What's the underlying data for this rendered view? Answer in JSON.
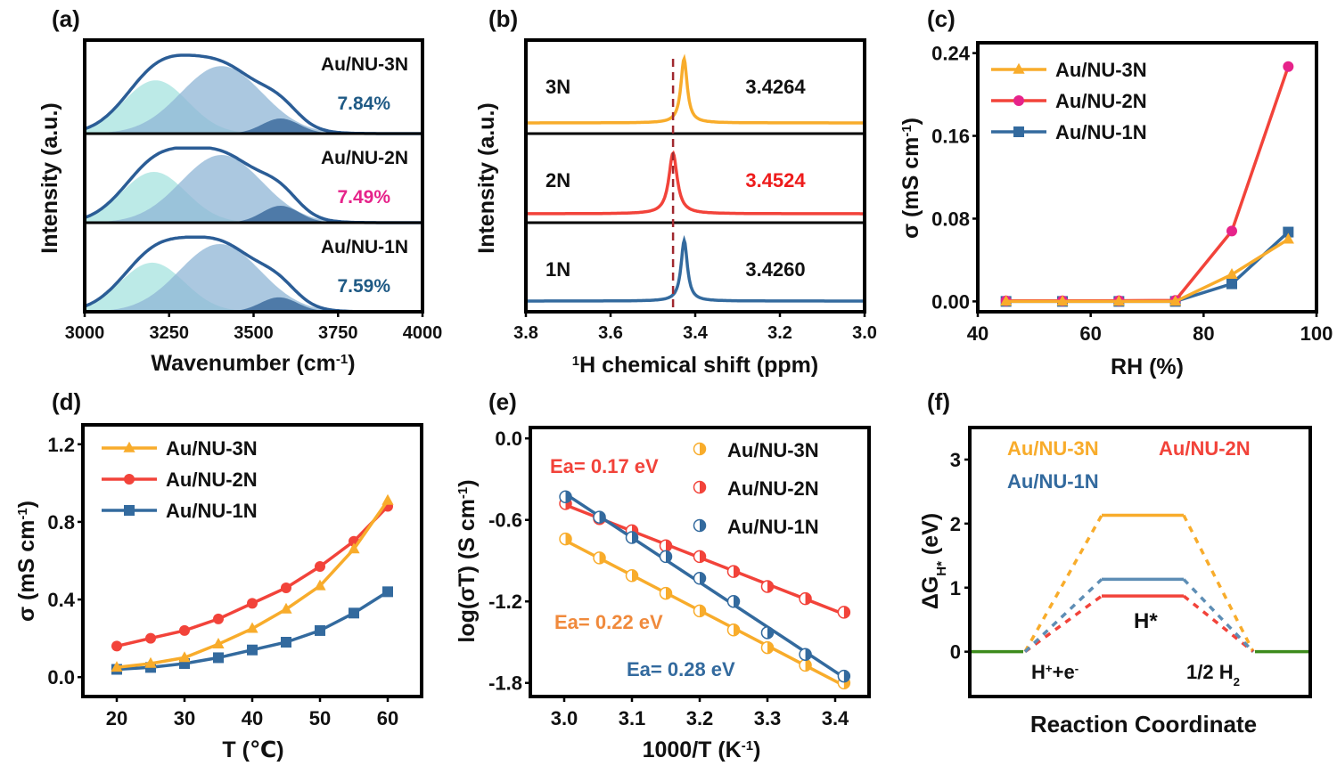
{
  "chart_data": [
    {
      "id": "a",
      "panel_label": "(a)",
      "type": "area",
      "xlabel": "Wavenumber (cm",
      "xlabel_sup": "-1",
      "xlabel_close": ")",
      "ylabel": "Intensity (a.u.)",
      "xlim": [
        3000,
        4000
      ],
      "xticks": [
        "3000",
        "3250",
        "3500",
        "3750",
        "4000"
      ],
      "xtick_values": [
        3000,
        3250,
        3500,
        3750,
        4000
      ],
      "stacked_panels": [
        {
          "name": "Au/NU-3N",
          "percent": "7.84%",
          "percent_color": "#1f5a85",
          "components": [
            {
              "center": 3210,
              "width": 95,
              "height": 0.6,
              "color": "#a6e3df"
            },
            {
              "center": 3405,
              "width": 120,
              "height": 0.76,
              "color": "#8fb6d6"
            },
            {
              "center": 3580,
              "width": 55,
              "height": 0.17,
              "color": "#2f6095"
            }
          ]
        },
        {
          "name": "Au/NU-2N",
          "percent": "7.49%",
          "percent_color": "#e6238a",
          "components": [
            {
              "center": 3205,
              "width": 95,
              "height": 0.6,
              "color": "#a6e3df"
            },
            {
              "center": 3405,
              "width": 120,
              "height": 0.8,
              "color": "#8fb6d6"
            },
            {
              "center": 3580,
              "width": 55,
              "height": 0.2,
              "color": "#2f6095"
            }
          ]
        },
        {
          "name": "Au/NU-1N",
          "percent": "7.59%",
          "percent_color": "#1f5a85",
          "components": [
            {
              "center": 3200,
              "width": 95,
              "height": 0.58,
              "color": "#a6e3df"
            },
            {
              "center": 3400,
              "width": 120,
              "height": 0.8,
              "color": "#8fb6d6"
            },
            {
              "center": 3575,
              "width": 55,
              "height": 0.17,
              "color": "#2f6095"
            }
          ]
        }
      ],
      "envelope_color": "#2b5d96"
    },
    {
      "id": "b",
      "panel_label": "(b)",
      "type": "line",
      "xlabel_sup": "1",
      "xlabel": "H chemical shift (ppm)",
      "ylabel": "Intensity (a.u.)",
      "xlim": [
        3.8,
        3.0
      ],
      "xticks": [
        "3.8",
        "3.6",
        "3.4",
        "3.2",
        "3.0"
      ],
      "xtick_values": [
        3.8,
        3.6,
        3.4,
        3.2,
        3.0
      ],
      "reference_line": 3.4524,
      "reference_color": "#a0282e",
      "series": [
        {
          "name": "3N",
          "peak": 3.4264,
          "value_label": "3.4264",
          "color": "#f8ac2b",
          "label_color": "#111111"
        },
        {
          "name": "2N",
          "peak": 3.4524,
          "value_label": "3.4524",
          "color": "#f2433a",
          "label_color": "#ee1c1c"
        },
        {
          "name": "1N",
          "peak": 3.426,
          "value_label": "3.4260",
          "color": "#336a9e",
          "label_color": "#111111"
        }
      ]
    },
    {
      "id": "c",
      "panel_label": "(c)",
      "type": "line",
      "xlabel": "RH (%)",
      "ylabel": "σ (mS cm",
      "ylabel_sup": "-1",
      "ylabel_close": ")",
      "xlim": [
        40,
        100
      ],
      "ylim": [
        -0.01,
        0.25
      ],
      "xticks": [
        "40",
        "60",
        "80",
        "100"
      ],
      "xtick_values": [
        40,
        60,
        80,
        100
      ],
      "yticks": [
        "0.00",
        "0.08",
        "0.16",
        "0.24"
      ],
      "ytick_values": [
        0.0,
        0.08,
        0.16,
        0.24
      ],
      "legend_position": "top-left",
      "x": [
        45,
        55,
        65,
        75,
        85,
        95
      ],
      "series": [
        {
          "name": "Au/NU-3N",
          "marker": "triangle",
          "color": "#f8ac2b",
          "marker_color": "#f8ac2b",
          "values": [
            0.0,
            0.0,
            0.0,
            0.0,
            0.026,
            0.06
          ]
        },
        {
          "name": "Au/NU-2N",
          "marker": "circle",
          "color": "#f2433a",
          "marker_color": "#e6238a",
          "values": [
            0.0005,
            0.0005,
            0.0007,
            0.001,
            0.068,
            0.227
          ]
        },
        {
          "name": "Au/NU-1N",
          "marker": "square",
          "color": "#336a9e",
          "marker_color": "#336a9e",
          "values": [
            0.0,
            0.0,
            0.0,
            0.0,
            0.017,
            0.067
          ]
        }
      ]
    },
    {
      "id": "d",
      "panel_label": "(d)",
      "type": "line",
      "xlabel": "T (℃)",
      "ylabel": "σ (mS cm",
      "ylabel_sup": "-1",
      "ylabel_close": ")",
      "xlim": [
        15,
        65
      ],
      "ylim": [
        -0.1,
        1.3
      ],
      "xticks": [
        "20",
        "30",
        "40",
        "50",
        "60"
      ],
      "xtick_values": [
        20,
        30,
        40,
        50,
        60
      ],
      "yticks": [
        "0.0",
        "0.4",
        "0.8",
        "1.2"
      ],
      "ytick_values": [
        0.0,
        0.4,
        0.8,
        1.2
      ],
      "legend_position": "top-left",
      "x": [
        20,
        25,
        30,
        35,
        40,
        45,
        50,
        55,
        60
      ],
      "series": [
        {
          "name": "Au/NU-3N",
          "marker": "triangle",
          "color": "#f8ac2b",
          "values": [
            0.05,
            0.07,
            0.1,
            0.17,
            0.25,
            0.35,
            0.47,
            0.66,
            0.91
          ]
        },
        {
          "name": "Au/NU-2N",
          "marker": "circle",
          "color": "#f2433a",
          "values": [
            0.16,
            0.2,
            0.24,
            0.3,
            0.38,
            0.46,
            0.57,
            0.7,
            0.88
          ]
        },
        {
          "name": "Au/NU-1N",
          "marker": "square",
          "color": "#336a9e",
          "values": [
            0.04,
            0.05,
            0.07,
            0.1,
            0.14,
            0.18,
            0.24,
            0.33,
            0.44
          ]
        }
      ]
    },
    {
      "id": "e",
      "panel_label": "(e)",
      "type": "scatter",
      "xlabel": "1000/T (K",
      "xlabel_sup": "-1",
      "xlabel_close": ")",
      "ylabel": "log(σT) (S cm",
      "ylabel_sup": "-1",
      "ylabel_close": ")",
      "xlim": [
        2.95,
        3.45
      ],
      "ylim": [
        -1.9,
        0.08
      ],
      "xticks": [
        "3.0",
        "3.1",
        "3.2",
        "3.3",
        "3.4"
      ],
      "xtick_values": [
        3.0,
        3.1,
        3.2,
        3.3,
        3.4
      ],
      "yticks": [
        "0.0",
        "-0.6",
        "-1.2",
        "-1.8"
      ],
      "ytick_values": [
        0.0,
        -0.6,
        -1.2,
        -1.8
      ],
      "legend_position": "top-right",
      "x": [
        3.002,
        3.052,
        3.1,
        3.15,
        3.2,
        3.25,
        3.3,
        3.356,
        3.413
      ],
      "series": [
        {
          "name": "Au/NU-3N",
          "color": "#f8ac2b",
          "ea_label": "Ea= 0.22 eV",
          "ea_color": "#f08a3c",
          "values": [
            -0.74,
            -0.88,
            -1.01,
            -1.14,
            -1.27,
            -1.41,
            -1.54,
            -1.67,
            -1.8
          ]
        },
        {
          "name": "Au/NU-2N",
          "color": "#f2433a",
          "ea_label": "Ea= 0.17 eV",
          "ea_color": "#f2433a",
          "values": [
            -0.48,
            -0.59,
            -0.68,
            -0.79,
            -0.87,
            -0.98,
            -1.09,
            -1.18,
            -1.28
          ]
        },
        {
          "name": "Au/NU-1N",
          "color": "#336a9e",
          "ea_label": "Ea= 0.28 eV",
          "ea_color": "#336a9e",
          "values": [
            -0.43,
            -0.58,
            -0.73,
            -0.87,
            -1.03,
            -1.2,
            -1.43,
            -1.59,
            -1.75
          ]
        }
      ]
    },
    {
      "id": "f",
      "panel_label": "(f)",
      "type": "line",
      "xlabel": "Reaction Coordinate",
      "ylabel": "ΔG",
      "ylabel_sub": "H*",
      "ylabel_tail": " (eV)",
      "ylim": [
        -0.7,
        3.5
      ],
      "yticks": [
        "0",
        "1",
        "2",
        "3"
      ],
      "ytick_values": [
        0,
        1,
        2,
        3
      ],
      "states": [
        "H⁺+e⁻",
        "H*",
        "1/2 H₂"
      ],
      "state_labels": {
        "left_main": "H",
        "left_sup1": "+",
        "left_mid": "+e",
        "left_sup2": "-",
        "middle": "H*",
        "right_main": "1/2 H",
        "right_sub": "2"
      },
      "baseline_color": "#3d8b1c",
      "series": [
        {
          "name": "Au/NU-3N",
          "color": "#f8ac2b",
          "value": 2.13
        },
        {
          "name": "Au/NU-2N",
          "color": "#f2433a",
          "value": 0.87
        },
        {
          "name": "Au/NU-1N",
          "color": "#5e8eb5",
          "value": 1.13
        }
      ],
      "legend_colors": {
        "Au/NU-3N": "#f8ac2b",
        "Au/NU-2N": "#f2433a",
        "Au/NU-1N": "#336a9e"
      }
    }
  ]
}
